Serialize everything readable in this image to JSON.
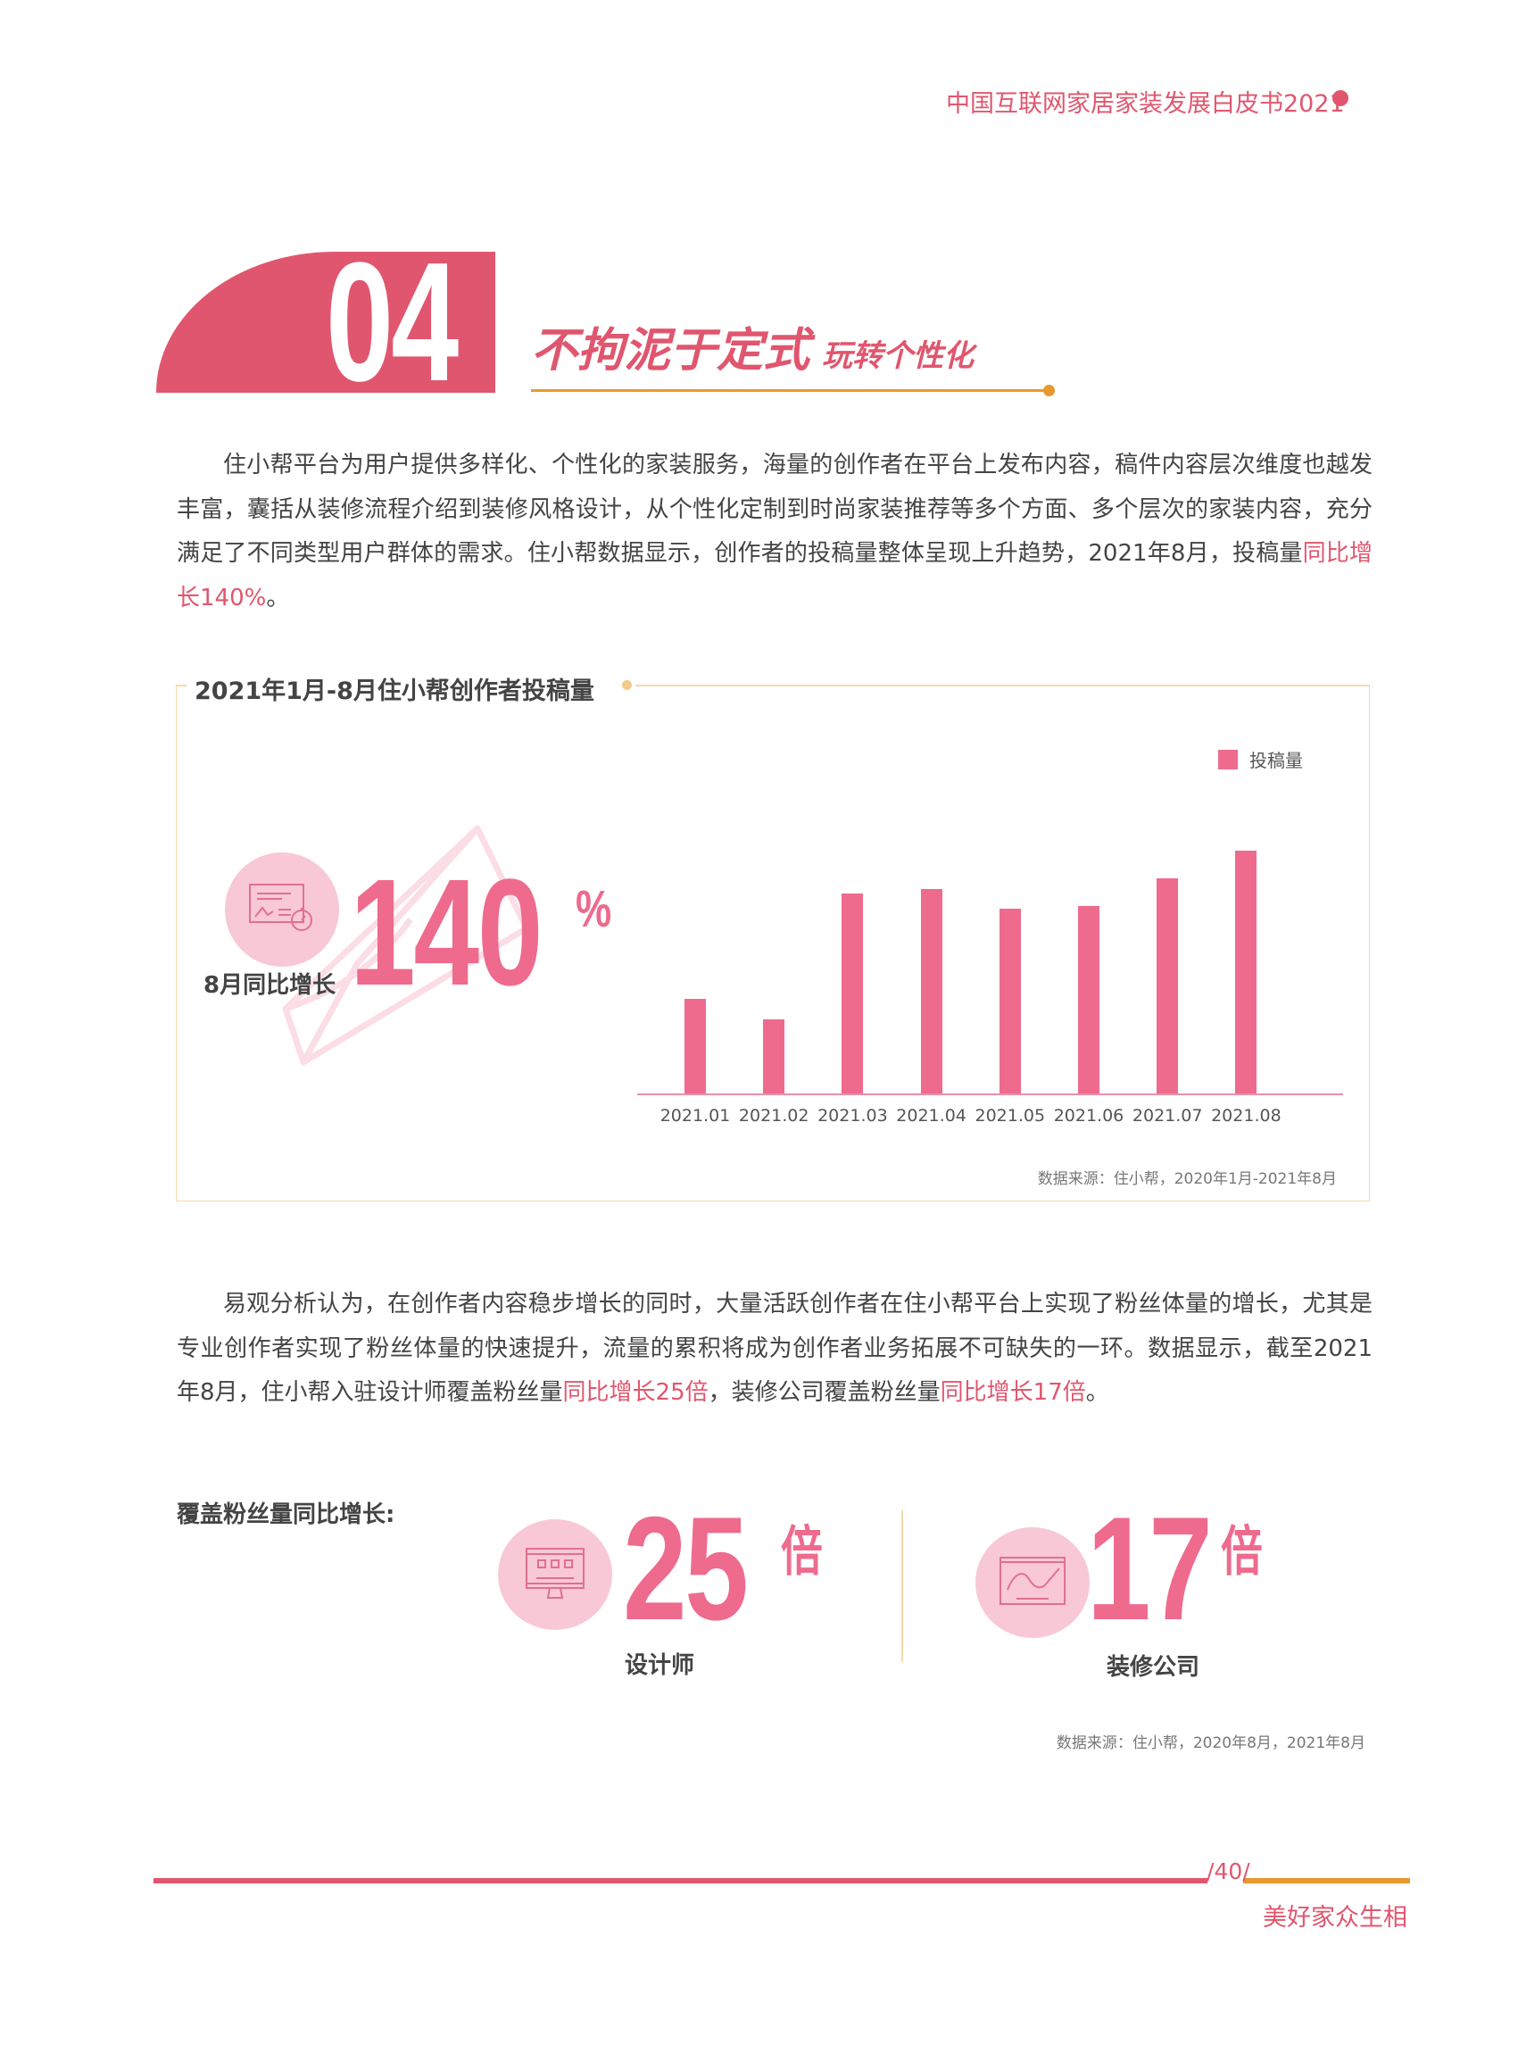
{
  "header": {
    "title": "中国互联网家居家装发展白皮书2021"
  },
  "section": {
    "number": "04",
    "title": "不拘泥于定式",
    "subtitle": "玩转个性化"
  },
  "paragraph1": {
    "text": "住小帮平台为用户提供多样化、个性化的家装服务，海量的创作者在平台上发布内容，稿件内容层次维度也越发丰富，囊括从装修流程介绍到装修风格设计，从个性化定制到时尚家装推荐等多个方面、多个层次的家装内容，充分满足了不同类型用户群体的需求。住小帮数据显示，创作者的投稿量整体呈现上升趋势，2021年8月，投稿量",
    "highlight": "同比增长140%",
    "end": "。"
  },
  "chart_data": {
    "type": "bar",
    "title": "2021年1月-8月住小帮创作者投稿量",
    "categories": [
      "2021.01",
      "2021.02",
      "2021.03",
      "2021.04",
      "2021.05",
      "2021.06",
      "2021.07",
      "2021.08"
    ],
    "series": [
      {
        "name": "投稿量",
        "values": [
          275,
          215,
          581,
          594,
          539,
          547,
          626,
          707
        ]
      }
    ],
    "legend": "top-right",
    "grid": false,
    "y_axis_shown": false,
    "color": "#ee6b8e",
    "source": "数据来源：住小帮，2020年1月-2021年8月"
  },
  "callout": {
    "value": "140",
    "unit": "%",
    "label": "8月同比增长",
    "icon": "report-stopwatch-icon"
  },
  "paragraph2": {
    "text": "易观分析认为，在创作者内容稳步增长的同时，大量活跃创作者在住小帮平台上实现了粉丝体量的增长，尤其是专业创作者实现了粉丝体量的快速提升，流量的累积将成为创作者业务拓展不可缺失的一环。数据显示，截至2021年8月，住小帮入驻设计师覆盖粉丝量",
    "hl1": "同比增长25倍",
    "mid": "，装修公司覆盖粉丝量",
    "hl2": "同比增长17倍",
    "end": "。"
  },
  "fans": {
    "heading": "覆盖粉丝量同比增长:",
    "items": [
      {
        "value": "25",
        "unit": "倍",
        "label": "设计师",
        "icon": "desktop-monitor-icon"
      },
      {
        "value": "17",
        "unit": "倍",
        "label": "装修公司",
        "icon": "line-chart-screen-icon"
      }
    ],
    "source": "数据来源：住小帮，2020年8月，2021年8月"
  },
  "footer": {
    "page": "40",
    "slash": "/",
    "tagline": "美好家众生相"
  },
  "colors": {
    "accent": "#e0566e",
    "bar": "#ee6b8e",
    "orange": "#e8982e",
    "circle": "#f8c8d6"
  }
}
